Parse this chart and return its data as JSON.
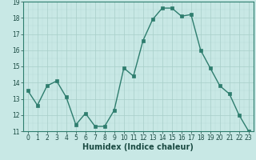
{
  "x": [
    0,
    1,
    2,
    3,
    4,
    5,
    6,
    7,
    8,
    9,
    10,
    11,
    12,
    13,
    14,
    15,
    16,
    17,
    18,
    19,
    20,
    21,
    22,
    23
  ],
  "y": [
    13.5,
    12.6,
    13.8,
    14.1,
    13.1,
    11.4,
    12.1,
    11.3,
    11.3,
    12.3,
    14.9,
    14.4,
    16.6,
    17.9,
    18.6,
    18.6,
    18.1,
    18.2,
    16.0,
    14.9,
    13.8,
    13.3,
    12.0,
    11.0
  ],
  "line_color": "#2e7d6e",
  "bg_color": "#c8e8e5",
  "grid_color_major": "#a8cec9",
  "xlabel": "Humidex (Indice chaleur)",
  "ylim": [
    11,
    19
  ],
  "xlim": [
    -0.5,
    23.5
  ],
  "yticks": [
    11,
    12,
    13,
    14,
    15,
    16,
    17,
    18,
    19
  ],
  "xticks": [
    0,
    1,
    2,
    3,
    4,
    5,
    6,
    7,
    8,
    9,
    10,
    11,
    12,
    13,
    14,
    15,
    16,
    17,
    18,
    19,
    20,
    21,
    22,
    23
  ],
  "tick_fontsize": 5.5,
  "xlabel_fontsize": 7.0,
  "marker_size": 2.5,
  "linewidth": 1.0
}
